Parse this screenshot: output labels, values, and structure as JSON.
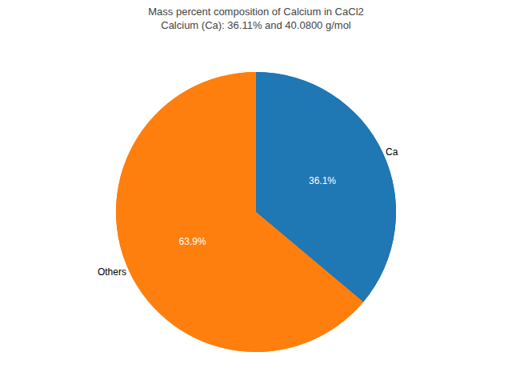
{
  "chart_data": {
    "type": "pie",
    "title": "Mass percent composition of Calcium in CaCl2\nCalcium (Ca): 36.11% and 40.0800 g/mol",
    "categories": [
      "Ca",
      "Others"
    ],
    "values": [
      36.1,
      63.9
    ],
    "value_labels": [
      "36.1%",
      "63.9%"
    ],
    "colors": [
      "#1f77b4",
      "#ff7f0e"
    ],
    "data_labels": true
  }
}
